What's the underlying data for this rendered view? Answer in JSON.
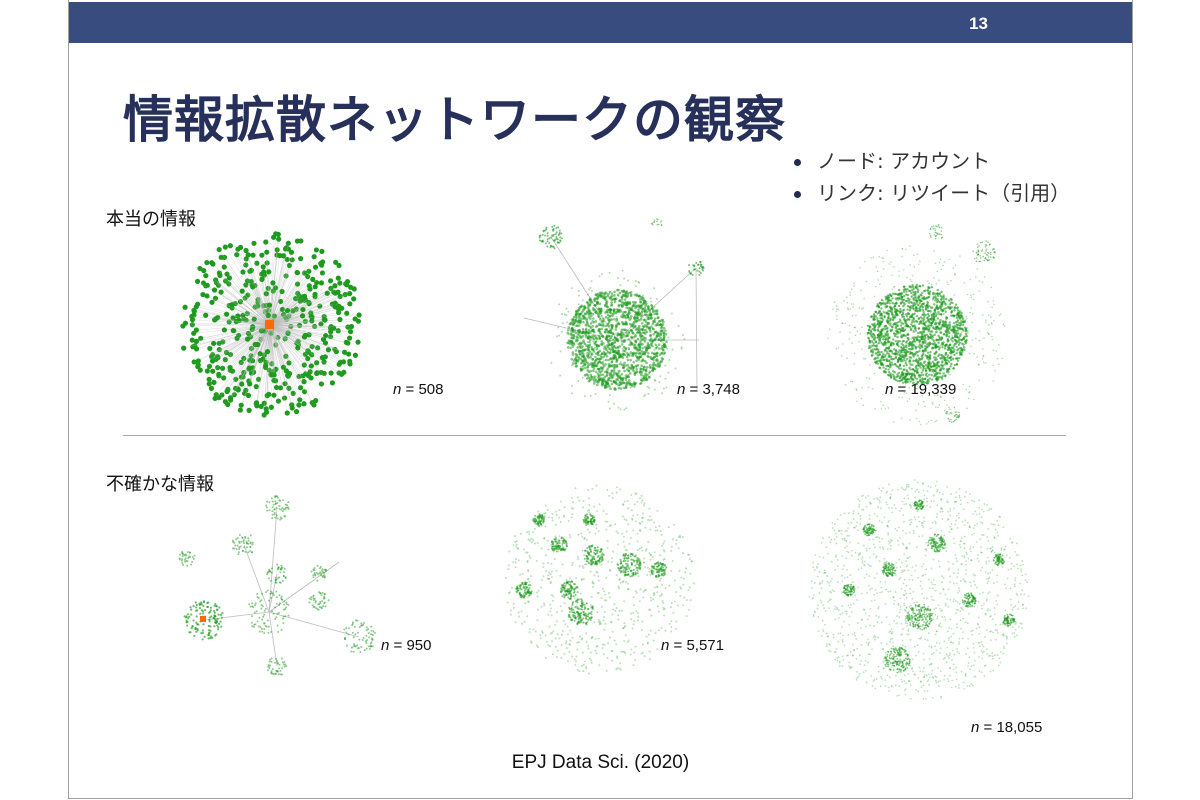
{
  "slide": {
    "page_number": "13",
    "title": "情報拡散ネットワークの観察",
    "legend": [
      "ノード: アカウント",
      "リンク: リツイート（引用）"
    ],
    "sections": {
      "true_info": "本当の情報",
      "uncertain_info": "不確かな情報"
    },
    "networks": {
      "true": [
        "508",
        "3,748",
        "19,339"
      ],
      "uncertain": [
        "950",
        "5,571",
        "18,055"
      ]
    },
    "n_symbol": "n",
    "equals": " = ",
    "citation": "EPJ Data Sci. (2020)",
    "colors": {
      "header": "#384c80",
      "title": "#26305a",
      "node": "#1e9a1e",
      "hub": "#ff6a00",
      "divider": "#8cc94a"
    }
  }
}
